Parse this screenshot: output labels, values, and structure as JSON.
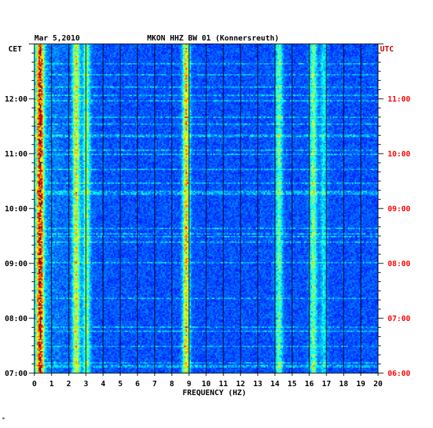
{
  "header": {
    "date": "Mar 5,2010",
    "station": "MKON HHZ BW 01 (Konnersreuth)",
    "left_tz": "CET",
    "right_tz": "UTC",
    "corner_mark": "*"
  },
  "colors": {
    "background": "#00008f",
    "left_axis_text": "#000000",
    "right_axis_text": "#ff0000",
    "gridline": "#000000"
  },
  "chart_data": {
    "type": "heatmap",
    "title": "MKON HHZ BW 01 (Konnersreuth)",
    "xlabel": "FREQUENCY (HZ)",
    "xlim": [
      0,
      20
    ],
    "x_ticks": [
      "0",
      "1",
      "2",
      "3",
      "4",
      "5",
      "6",
      "7",
      "8",
      "9",
      "10",
      "11",
      "12",
      "13",
      "14",
      "15",
      "16",
      "17",
      "18",
      "19",
      "20"
    ],
    "y_left_ticks": [
      "07:00",
      "08:00",
      "09:00",
      "10:00",
      "11:00",
      "12:00"
    ],
    "y_right_ticks": [
      "06:00",
      "07:00",
      "08:00",
      "09:00",
      "10:00",
      "11:00"
    ],
    "y_range_cet": [
      "07:00",
      "13:00"
    ],
    "grid": "vertical lines at each integer Hz",
    "colormap": "jet",
    "frequency_bands_hz": [
      {
        "center": 0.3,
        "strength": 0.95
      },
      {
        "center": 2.4,
        "strength": 0.6
      },
      {
        "center": 3.0,
        "strength": 0.45
      },
      {
        "center": 8.8,
        "strength": 0.7
      },
      {
        "center": 14.2,
        "strength": 0.4
      },
      {
        "center": 16.2,
        "strength": 0.45
      },
      {
        "center": 16.8,
        "strength": 0.25
      }
    ]
  }
}
